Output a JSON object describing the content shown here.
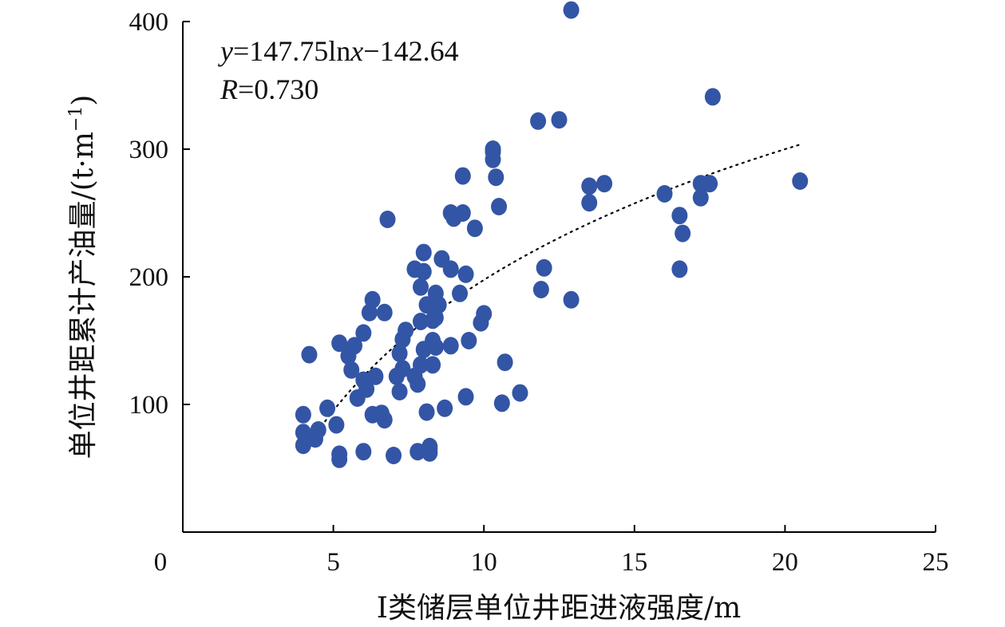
{
  "chart_data": {
    "type": "scatter",
    "title": "",
    "xlabel": "I类储层单位井距进液强度/m",
    "ylabel": "单位井距累计产油量/(t·m",
    "ylabel_sup": "−1",
    "ylabel_close": ")",
    "xlim": [
      0,
      25
    ],
    "ylim": [
      0,
      400
    ],
    "x_ticks": [
      0,
      5,
      10,
      15,
      20,
      25
    ],
    "y_ticks": [
      100,
      200,
      300,
      400
    ],
    "grid": false,
    "legend": "none",
    "colors": {
      "points": "#3355a5",
      "axis": "#000000",
      "trend": "#000000"
    },
    "trendline": {
      "model": "log",
      "a": 147.75,
      "b": -142.64,
      "x_range": [
        4.0,
        20.5
      ],
      "equation_parts": {
        "y": "y",
        "eq": "=147.75ln",
        "x": "x",
        "rest": "−142.64"
      },
      "r_parts": {
        "r": "R",
        "val": "=0.730"
      }
    },
    "points": [
      {
        "x": 4.0,
        "y": 68
      },
      {
        "x": 4.0,
        "y": 92
      },
      {
        "x": 4.0,
        "y": 78
      },
      {
        "x": 4.2,
        "y": 139
      },
      {
        "x": 4.4,
        "y": 73
      },
      {
        "x": 4.5,
        "y": 80
      },
      {
        "x": 4.8,
        "y": 97
      },
      {
        "x": 5.1,
        "y": 84
      },
      {
        "x": 5.2,
        "y": 61
      },
      {
        "x": 5.2,
        "y": 57
      },
      {
        "x": 5.2,
        "y": 148
      },
      {
        "x": 5.5,
        "y": 138
      },
      {
        "x": 5.6,
        "y": 127
      },
      {
        "x": 5.7,
        "y": 146
      },
      {
        "x": 5.8,
        "y": 105
      },
      {
        "x": 6.0,
        "y": 63
      },
      {
        "x": 6.0,
        "y": 156
      },
      {
        "x": 6.0,
        "y": 119
      },
      {
        "x": 6.1,
        "y": 112
      },
      {
        "x": 6.2,
        "y": 172
      },
      {
        "x": 6.3,
        "y": 92
      },
      {
        "x": 6.3,
        "y": 182
      },
      {
        "x": 6.4,
        "y": 122
      },
      {
        "x": 6.6,
        "y": 93
      },
      {
        "x": 6.7,
        "y": 172
      },
      {
        "x": 6.7,
        "y": 88
      },
      {
        "x": 6.8,
        "y": 245
      },
      {
        "x": 7.0,
        "y": 60
      },
      {
        "x": 7.1,
        "y": 122
      },
      {
        "x": 7.2,
        "y": 140
      },
      {
        "x": 7.2,
        "y": 110
      },
      {
        "x": 7.3,
        "y": 128
      },
      {
        "x": 7.3,
        "y": 151
      },
      {
        "x": 7.4,
        "y": 158
      },
      {
        "x": 7.7,
        "y": 206
      },
      {
        "x": 7.7,
        "y": 122
      },
      {
        "x": 7.8,
        "y": 116
      },
      {
        "x": 7.8,
        "y": 63
      },
      {
        "x": 7.9,
        "y": 131
      },
      {
        "x": 7.9,
        "y": 192
      },
      {
        "x": 7.9,
        "y": 165
      },
      {
        "x": 8.0,
        "y": 204
      },
      {
        "x": 8.0,
        "y": 219
      },
      {
        "x": 8.0,
        "y": 143
      },
      {
        "x": 8.1,
        "y": 94
      },
      {
        "x": 8.1,
        "y": 178
      },
      {
        "x": 8.2,
        "y": 65
      },
      {
        "x": 8.2,
        "y": 67
      },
      {
        "x": 8.2,
        "y": 62
      },
      {
        "x": 8.3,
        "y": 166
      },
      {
        "x": 8.3,
        "y": 150
      },
      {
        "x": 8.3,
        "y": 131
      },
      {
        "x": 8.4,
        "y": 145
      },
      {
        "x": 8.4,
        "y": 187
      },
      {
        "x": 8.4,
        "y": 168
      },
      {
        "x": 8.5,
        "y": 178
      },
      {
        "x": 8.6,
        "y": 214
      },
      {
        "x": 8.7,
        "y": 97
      },
      {
        "x": 8.9,
        "y": 146
      },
      {
        "x": 8.9,
        "y": 206
      },
      {
        "x": 8.9,
        "y": 250
      },
      {
        "x": 9.0,
        "y": 246
      },
      {
        "x": 9.2,
        "y": 187
      },
      {
        "x": 9.3,
        "y": 279
      },
      {
        "x": 9.3,
        "y": 250
      },
      {
        "x": 9.4,
        "y": 202
      },
      {
        "x": 9.4,
        "y": 106
      },
      {
        "x": 9.5,
        "y": 150
      },
      {
        "x": 9.7,
        "y": 238
      },
      {
        "x": 9.9,
        "y": 164
      },
      {
        "x": 10.0,
        "y": 171
      },
      {
        "x": 10.3,
        "y": 298
      },
      {
        "x": 10.3,
        "y": 292
      },
      {
        "x": 10.3,
        "y": 300
      },
      {
        "x": 10.4,
        "y": 278
      },
      {
        "x": 10.5,
        "y": 255
      },
      {
        "x": 10.6,
        "y": 101
      },
      {
        "x": 10.7,
        "y": 133
      },
      {
        "x": 11.2,
        "y": 109
      },
      {
        "x": 11.8,
        "y": 322
      },
      {
        "x": 11.9,
        "y": 190
      },
      {
        "x": 12.0,
        "y": 207
      },
      {
        "x": 12.5,
        "y": 323
      },
      {
        "x": 12.9,
        "y": 409
      },
      {
        "x": 12.9,
        "y": 182
      },
      {
        "x": 13.5,
        "y": 271
      },
      {
        "x": 13.5,
        "y": 258
      },
      {
        "x": 14.0,
        "y": 273
      },
      {
        "x": 16.0,
        "y": 265
      },
      {
        "x": 16.5,
        "y": 206
      },
      {
        "x": 16.5,
        "y": 248
      },
      {
        "x": 16.6,
        "y": 234
      },
      {
        "x": 17.2,
        "y": 262
      },
      {
        "x": 17.2,
        "y": 273
      },
      {
        "x": 17.5,
        "y": 273
      },
      {
        "x": 17.6,
        "y": 341
      },
      {
        "x": 20.5,
        "y": 275
      }
    ]
  }
}
